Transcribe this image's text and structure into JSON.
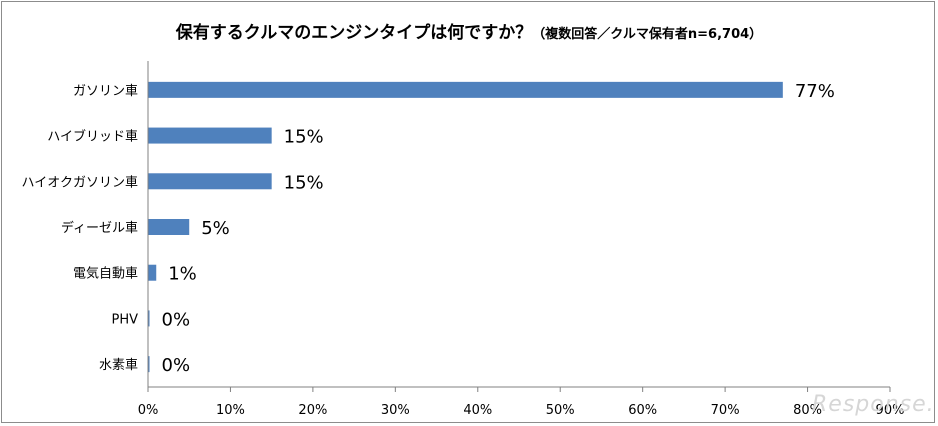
{
  "chart_data": {
    "type": "bar",
    "orientation": "horizontal",
    "title": "保有するクルマのエンジンタイプは何ですか？",
    "subtitle": "（複数回答／クルマ保有者n=6,704）",
    "categories": [
      "ガソリン車",
      "ハイブリッド車",
      "ハイオクガソリン車",
      "ディーゼル車",
      "電気自動車",
      "PHV",
      "水素車"
    ],
    "values": [
      77,
      15,
      15,
      5,
      1,
      0,
      0
    ],
    "data_labels": [
      "77%",
      "15%",
      "15%",
      "5%",
      "1%",
      "0%",
      "0%"
    ],
    "xlim": [
      0,
      90
    ],
    "x_ticks": [
      "0%",
      "10%",
      "20%",
      "30%",
      "40%",
      "50%",
      "60%",
      "70%",
      "80%",
      "90%"
    ],
    "bar_color": "#4f81bd",
    "grid": false,
    "legend": "none"
  },
  "watermark": "Response."
}
